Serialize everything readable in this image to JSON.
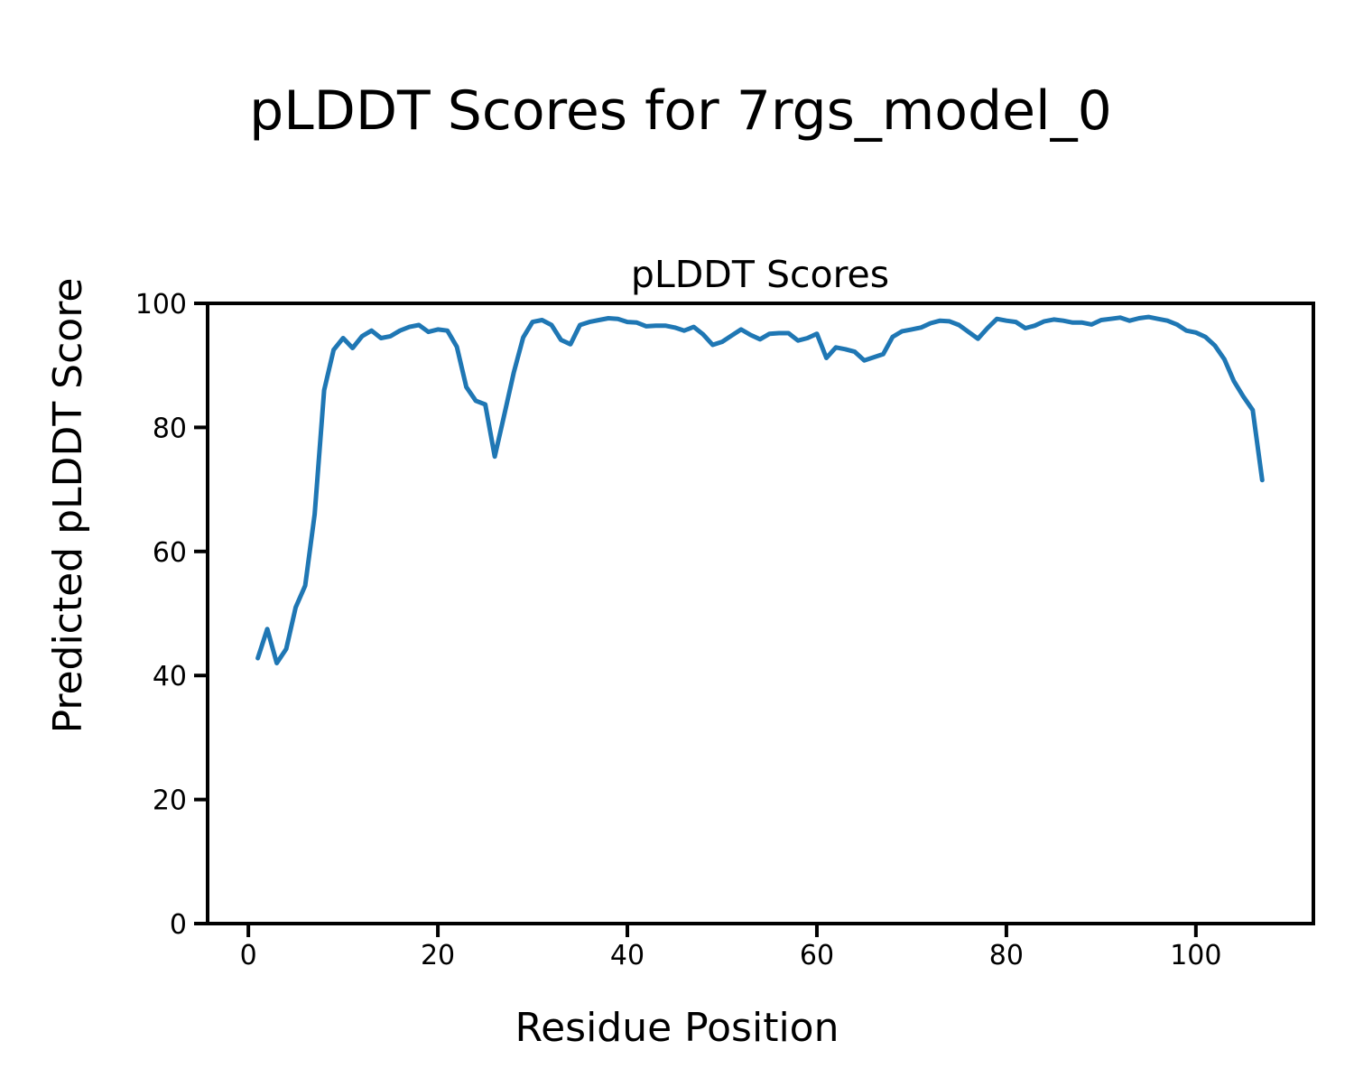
{
  "figure": {
    "suptitle": "pLDDT Scores for 7rgs_model_0"
  },
  "chart_data": {
    "type": "line",
    "title": "pLDDT Scores",
    "xlabel": "Residue Position",
    "ylabel": "Predicted pLDDT Score",
    "xlim": [
      -4.3,
      112.4
    ],
    "ylim": [
      0,
      100
    ],
    "xticks": [
      0,
      20,
      40,
      60,
      80,
      100
    ],
    "yticks": [
      0,
      20,
      40,
      60,
      80,
      100
    ],
    "grid": false,
    "legend": false,
    "line_color": "#1f77b4",
    "series": [
      {
        "name": "pLDDT",
        "x": [
          1,
          2,
          3,
          4,
          5,
          6,
          7,
          8,
          9,
          10,
          11,
          12,
          13,
          14,
          15,
          16,
          17,
          18,
          19,
          20,
          21,
          22,
          23,
          24,
          25,
          26,
          27,
          28,
          29,
          30,
          31,
          32,
          33,
          34,
          35,
          36,
          37,
          38,
          39,
          40,
          41,
          42,
          43,
          44,
          45,
          46,
          47,
          48,
          49,
          50,
          51,
          52,
          53,
          54,
          55,
          56,
          57,
          58,
          59,
          60,
          61,
          62,
          63,
          64,
          65,
          66,
          67,
          68,
          69,
          70,
          71,
          72,
          73,
          74,
          75,
          76,
          77,
          78,
          79,
          80,
          81,
          82,
          83,
          84,
          85,
          86,
          87,
          88,
          89,
          90,
          91,
          92,
          93,
          94,
          95,
          96,
          97,
          98,
          99,
          100,
          101,
          102,
          103,
          104,
          105,
          106,
          107
        ],
        "values": [
          42.8,
          47.5,
          42.0,
          44.3,
          51.0,
          54.5,
          66.0,
          86.0,
          92.5,
          94.4,
          92.8,
          94.7,
          95.6,
          94.4,
          94.7,
          95.6,
          96.2,
          96.5,
          95.4,
          95.8,
          95.6,
          93.0,
          86.5,
          84.3,
          83.7,
          75.3,
          82.0,
          88.8,
          94.5,
          97.0,
          97.3,
          96.5,
          94.1,
          93.4,
          96.5,
          97.0,
          97.3,
          97.6,
          97.5,
          97.0,
          96.9,
          96.3,
          96.4,
          96.4,
          96.1,
          95.6,
          96.2,
          95.0,
          93.3,
          93.8,
          94.8,
          95.8,
          94.9,
          94.2,
          95.1,
          95.2,
          95.2,
          94.0,
          94.4,
          95.1,
          91.2,
          92.9,
          92.6,
          92.2,
          90.8,
          91.3,
          91.8,
          94.6,
          95.5,
          95.8,
          96.1,
          96.8,
          97.2,
          97.1,
          96.5,
          95.4,
          94.3,
          96.0,
          97.5,
          97.2,
          97.0,
          96.0,
          96.4,
          97.1,
          97.4,
          97.2,
          96.9,
          96.9,
          96.6,
          97.3,
          97.5,
          97.7,
          97.2,
          97.6,
          97.8,
          97.5,
          97.2,
          96.6,
          95.6,
          95.3,
          94.6,
          93.2,
          91.0,
          87.5,
          85.0,
          82.8,
          71.5
        ]
      }
    ]
  }
}
